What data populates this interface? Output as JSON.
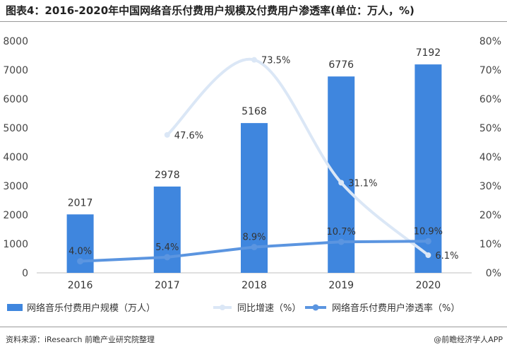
{
  "title": "图表4：2016-2020年中国网络音乐付费用户规模及付费用户渗透率(单位：万人，%)",
  "footer": {
    "source": "资料来源：iResearch 前瞻产业研究院整理",
    "brand": "@前瞻经济学人APP"
  },
  "colors": {
    "bar": "#3f86de",
    "growth_line": "#dbe7f6",
    "penetration_line": "#5b95e0"
  },
  "chart_data": {
    "type": "bar",
    "categories": [
      "2016",
      "2017",
      "2018",
      "2019",
      "2020"
    ],
    "series": [
      {
        "name": "网络音乐付费用户规模（万人）",
        "type": "bar",
        "axis": "left",
        "values": [
          2017,
          2978,
          5168,
          6776,
          7192
        ],
        "labels": [
          "2017",
          "2978",
          "5168",
          "6776",
          "7192"
        ]
      },
      {
        "name": "同比增速（%）",
        "type": "line",
        "axis": "right",
        "smooth": true,
        "values": [
          null,
          47.6,
          73.5,
          31.1,
          6.1
        ],
        "labels": [
          "",
          "47.6%",
          "73.5%",
          "31.1%",
          "6.1%"
        ]
      },
      {
        "name": "网络音乐付费用户渗透率（%）",
        "type": "line",
        "axis": "right",
        "values": [
          4.0,
          5.4,
          8.9,
          10.7,
          10.9
        ],
        "labels": [
          "4.0%",
          "5.4%",
          "8.9%",
          "10.7%",
          "10.9%"
        ]
      }
    ],
    "ylim_left": [
      0,
      8000
    ],
    "yticks_left": [
      "0",
      "1000",
      "2000",
      "3000",
      "4000",
      "5000",
      "6000",
      "7000",
      "8000"
    ],
    "ylim_right": [
      0,
      80
    ],
    "yticks_right": [
      "0%",
      "10%",
      "20%",
      "30%",
      "40%",
      "50%",
      "60%",
      "70%",
      "80%"
    ],
    "legend": [
      "网络音乐付费用户规模（万人）",
      "同比增速（%）",
      "网络音乐付费用户渗透率（%）"
    ]
  }
}
